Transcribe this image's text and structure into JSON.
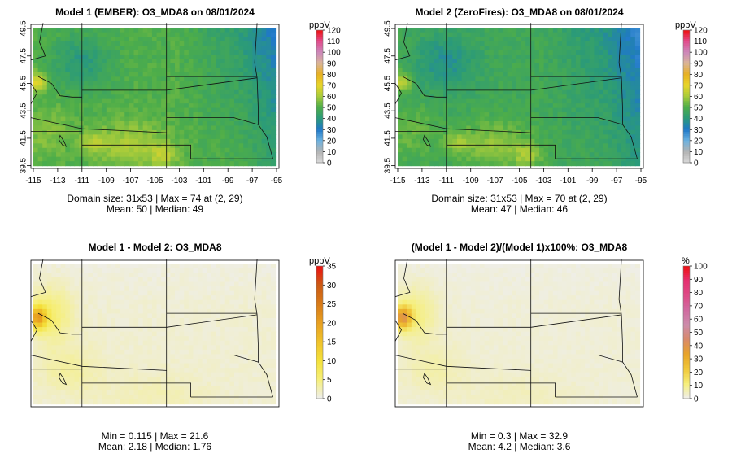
{
  "chart_data": [
    {
      "type": "heatmap",
      "title": "Model 1 (EMBER): O3_MDA8 on 08/01/2024",
      "colorbar_unit": "ppbV",
      "colorbar_ticks": [
        "0",
        "10",
        "20",
        "30",
        "40",
        "50",
        "60",
        "70",
        "80",
        "90",
        "100",
        "110",
        "120"
      ],
      "colorbar_range": [
        0,
        120
      ],
      "x_ticks": [
        "-115",
        "-113",
        "-111",
        "-109",
        "-107",
        "-105",
        "-103",
        "-101",
        "-99",
        "-97",
        "-95"
      ],
      "y_ticks": [
        "39.5",
        "41.5",
        "43.5",
        "45.5",
        "47.5",
        "49.5"
      ],
      "xlim": [
        -115.2,
        -94.8
      ],
      "ylim": [
        39.3,
        49.8
      ],
      "stats_line1": "Domain size: 31x53 | Max = 74 at (2, 29)",
      "stats_line2": "Mean: 50 |  Median: 49",
      "max": 74,
      "mean": 50,
      "median": 49
    },
    {
      "type": "heatmap",
      "title": "Model 2 (ZeroFires): O3_MDA8 on 08/01/2024",
      "colorbar_unit": "ppbV",
      "colorbar_ticks": [
        "0",
        "10",
        "20",
        "30",
        "40",
        "50",
        "60",
        "70",
        "80",
        "90",
        "100",
        "110",
        "120"
      ],
      "colorbar_range": [
        0,
        120
      ],
      "x_ticks": [
        "-115",
        "-113",
        "-111",
        "-109",
        "-107",
        "-105",
        "-103",
        "-101",
        "-99",
        "-97",
        "-95"
      ],
      "y_ticks": [
        "39.5",
        "41.5",
        "43.5",
        "45.5",
        "47.5",
        "49.5"
      ],
      "xlim": [
        -115.2,
        -94.8
      ],
      "ylim": [
        39.3,
        49.8
      ],
      "stats_line1": "Domain size: 31x53 | Max = 70 at (2, 29)",
      "stats_line2": "Mean: 47 |  Median: 46",
      "max": 70,
      "mean": 47,
      "median": 46
    },
    {
      "type": "heatmap",
      "title": "Model 1 - Model 2: O3_MDA8",
      "colorbar_unit": "ppbV",
      "colorbar_ticks": [
        "0",
        "5",
        "10",
        "15",
        "20",
        "25",
        "30",
        "35"
      ],
      "colorbar_range": [
        0,
        35
      ],
      "stats_line1": "Min = 0.115 | Max = 21.6",
      "stats_line2": "Mean: 2.18 |  Median: 1.76",
      "min": 0.115,
      "max": 21.6,
      "mean": 2.18,
      "median": 1.76
    },
    {
      "type": "heatmap",
      "title": "(Model 1 - Model 2)/(Model 1)x100%: O3_MDA8",
      "colorbar_unit": "%",
      "colorbar_ticks": [
        "0",
        "10",
        "20",
        "30",
        "40",
        "50",
        "60",
        "70",
        "80",
        "90",
        "100"
      ],
      "colorbar_range": [
        0,
        100
      ],
      "stats_line1": "Min = 0.3 | Max = 32.9",
      "stats_line2": "Mean: 4.2 |  Median: 3.6",
      "min": 0.3,
      "max": 32.9,
      "mean": 4.2,
      "median": 3.6
    }
  ],
  "colors": {
    "conc_scale": [
      "#d9d9d9",
      "#b3b3b3",
      "#6bb2e0",
      "#1f78c8",
      "#2a9a7a",
      "#4dad4a",
      "#a9cc3a",
      "#e8d52a",
      "#e8b020",
      "#d9b49a",
      "#cc88bb",
      "#e24a8a",
      "#ee1111"
    ],
    "diff_scale": [
      "#eeeeee",
      "#f6ef7a",
      "#f4e13a",
      "#f0c22a",
      "#e8a020",
      "#d87a18",
      "#cc5a14",
      "#ee1111"
    ],
    "pct_scale": [
      "#eeeeee",
      "#f6ef7a",
      "#f0c83a",
      "#e8a428",
      "#d98a6a",
      "#cc8cab",
      "#d06aa0",
      "#dd4a86",
      "#e63070",
      "#ee1111"
    ]
  }
}
